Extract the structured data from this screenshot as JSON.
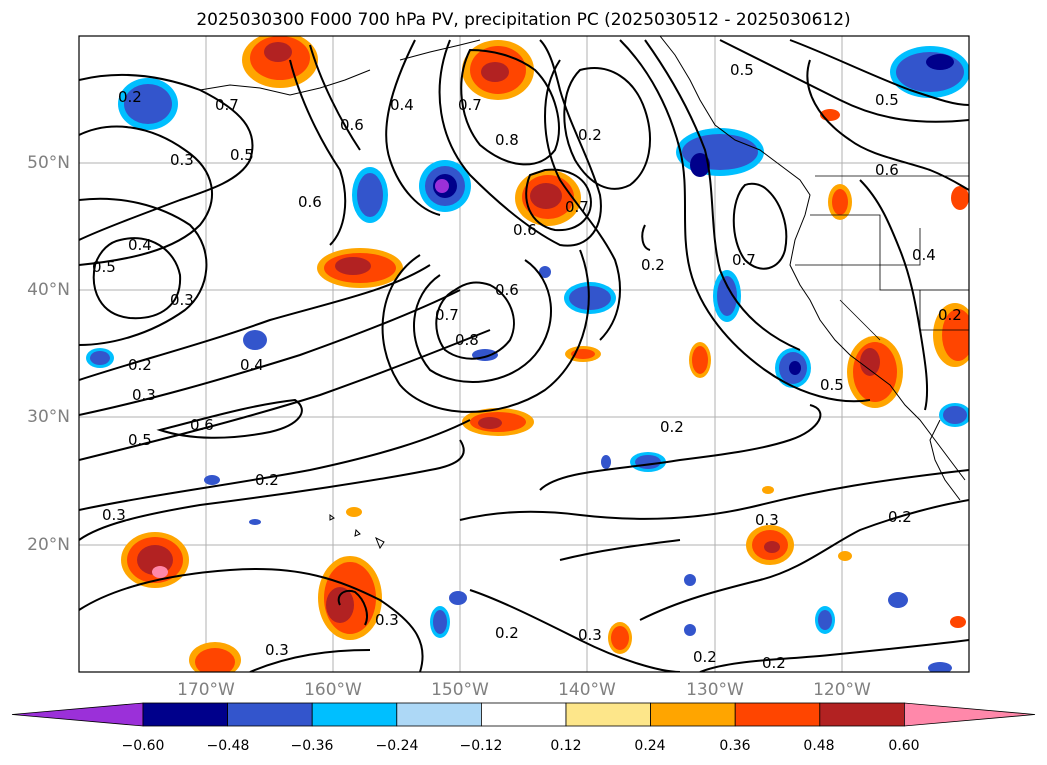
{
  "title": "2025030300 F000 700 hPa PV, precipitation PC (2025030512 - 2025030612)",
  "lat_labels": [
    "50°N",
    "40°N",
    "30°N",
    "20°N"
  ],
  "lon_labels": [
    "170°W",
    "160°W",
    "150°W",
    "140°W",
    "130°W",
    "120°W"
  ],
  "contour_labels": [
    "0.2",
    "0.3",
    "0.4",
    "0.5",
    "0.6",
    "0.7",
    "0.8"
  ],
  "colorbar": {
    "ticks": [
      "−0.60",
      "−0.48",
      "−0.36",
      "−0.24",
      "−0.12",
      "0.12",
      "0.24",
      "0.36",
      "0.48",
      "0.60"
    ],
    "colors": [
      "#9b30d9",
      "#00008b",
      "#3355cc",
      "#00bfff",
      "#add8f6",
      "#ffffff",
      "#fde68a",
      "#ffa500",
      "#ff4500",
      "#b22222",
      "#ff88aa"
    ]
  }
}
